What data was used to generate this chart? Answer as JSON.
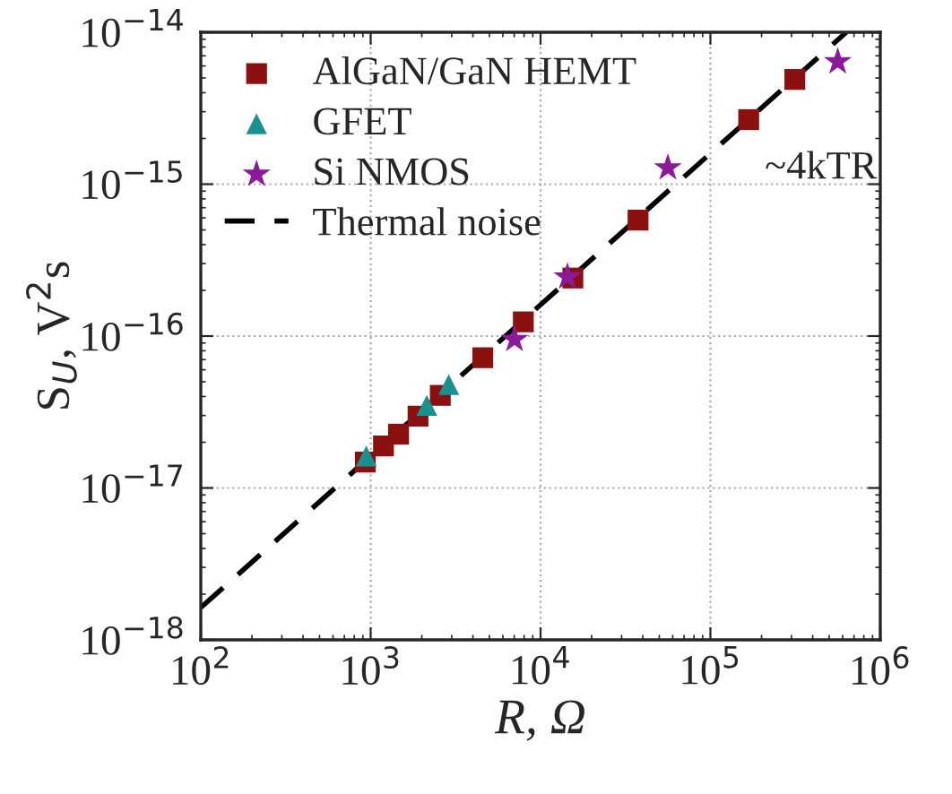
{
  "chart_data": {
    "type": "scatter",
    "xlabel": "R, Ω",
    "ylabel": "S$_{U}$, V$^{2}$s",
    "log": "xy",
    "grid": true,
    "legend": "top left",
    "xlim": [
      100,
      1000000
    ],
    "ylim": [
      1e-18,
      1e-14
    ],
    "xticks": [
      {
        "value": 100,
        "label": "10$^{2}$"
      },
      {
        "value": 1000,
        "label": "10$^{3}$"
      },
      {
        "value": 10000,
        "label": "10$^{4}$"
      },
      {
        "value": 100000,
        "label": "10$^{5}$"
      },
      {
        "value": 1000000,
        "label": "10$^{6}$"
      }
    ],
    "yticks": [
      {
        "value": 1e-18,
        "label": "10$^{−18}$"
      },
      {
        "value": 1e-17,
        "label": "10$^{−17}$"
      },
      {
        "value": 1e-16,
        "label": "10$^{−16}$"
      },
      {
        "value": 1e-15,
        "label": "10$^{−15}$"
      },
      {
        "value": 1e-14,
        "label": "10$^{−14}$"
      }
    ],
    "series": [
      {
        "name": "AlGaN/GaN HEMT",
        "color": "#8b1010",
        "marker": "square",
        "x": [
          930,
          1190,
          1460,
          1900,
          2570,
          4570,
          7920,
          15500,
          37500,
          168000,
          314000
        ],
        "values": [
          1.48e-17,
          1.89e-17,
          2.26e-17,
          2.97e-17,
          4.07e-17,
          7.2e-17,
          1.24e-16,
          2.41e-16,
          5.8e-16,
          2.66e-15,
          4.89e-15
        ]
      },
      {
        "name": "GFET",
        "color": "#1a9090",
        "marker": "triangle",
        "x": [
          942,
          2140,
          2880
        ],
        "values": [
          1.62e-17,
          3.49e-17,
          4.8e-17
        ]
      },
      {
        "name": "Si NMOS",
        "color": "#8b1a9b",
        "marker": "star",
        "x": [
          7030,
          14400,
          56200,
          562000
        ],
        "values": [
          9.5e-17,
          2.45e-16,
          1.28e-15,
          6.4e-15
        ]
      },
      {
        "name": "Thermal noise",
        "type": "line",
        "color": "#000000",
        "line_style": "dashed",
        "marker": "none",
        "x": [
          100,
          631000
        ],
        "values": [
          1.63e-18,
          1e-14
        ]
      }
    ],
    "annotations": [
      "~4kTR"
    ]
  }
}
